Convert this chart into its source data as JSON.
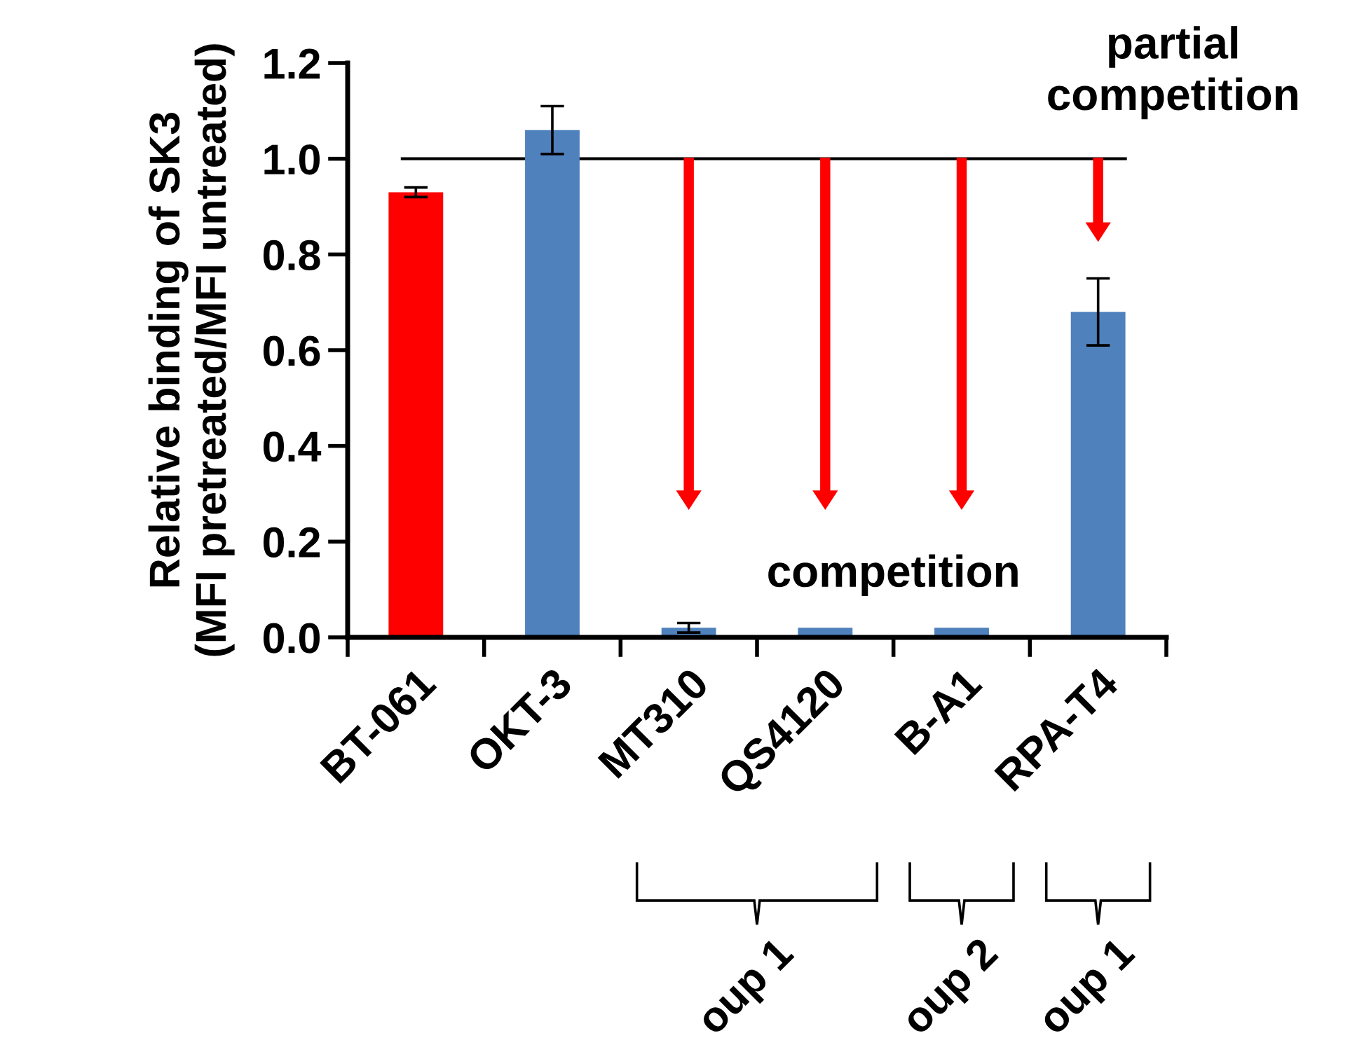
{
  "chart_data": {
    "type": "bar",
    "ylabel": "Relative binding of SK3\n(MFI pretreated/MFI untreated)",
    "categories": [
      "BT-061",
      "OKT-3",
      "MT310",
      "QS4120",
      "B-A1",
      "RPA-T4"
    ],
    "values": [
      0.93,
      1.06,
      0.02,
      0.02,
      0.02,
      0.68
    ],
    "errors": [
      0.01,
      0.05,
      0.01,
      null,
      null,
      0.07
    ],
    "colors": [
      "#ff0000",
      "#4f81bd",
      "#4f81bd",
      "#4f81bd",
      "#4f81bd",
      "#4f81bd"
    ],
    "ylim": [
      0,
      1.2
    ],
    "yticks": [
      {
        "value": 0,
        "label": "0.0"
      },
      {
        "value": 0.2,
        "label": "0.2"
      },
      {
        "value": 0.4,
        "label": "0.4"
      },
      {
        "value": 0.6,
        "label": "0.6"
      },
      {
        "value": 0.8,
        "label": "0.8"
      },
      {
        "value": 1.0,
        "label": "1.0"
      },
      {
        "value": 1.2,
        "label": "1.2"
      }
    ],
    "ref_lines": [
      {
        "axis": "y",
        "value": 1.0,
        "color": "#000000"
      }
    ],
    "annotations": [
      "competition",
      "partial\ncompetition",
      "oup 1",
      "oup 2",
      "oup 1"
    ],
    "grid": false
  }
}
